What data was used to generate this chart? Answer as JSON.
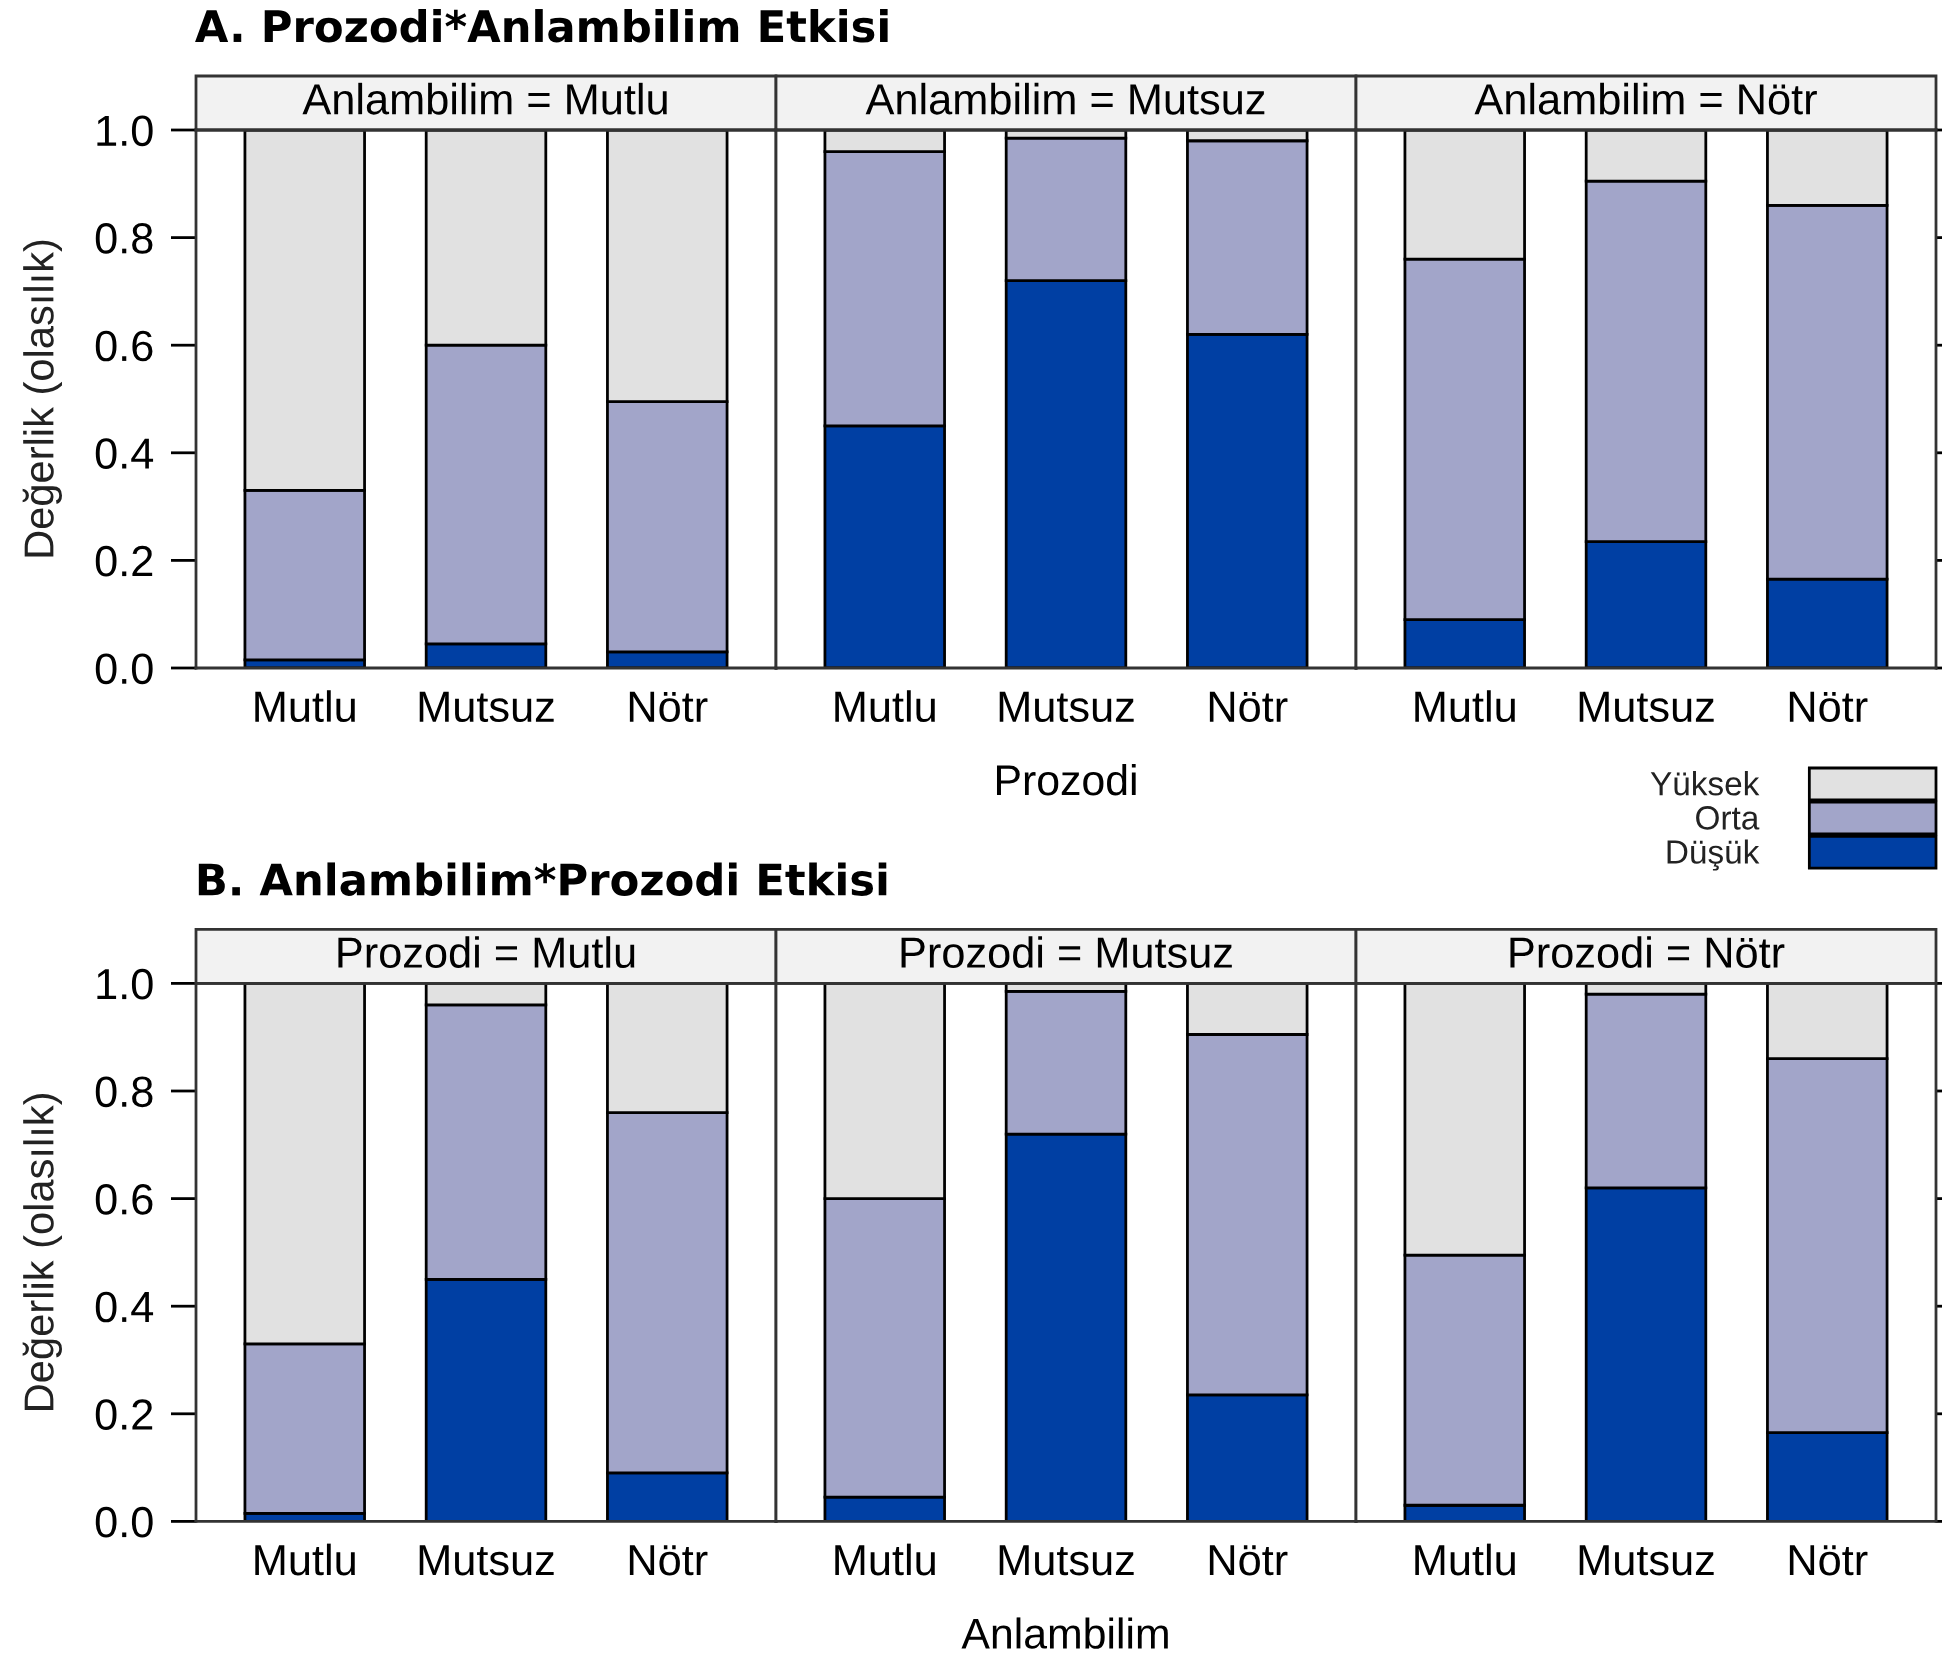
{
  "chart_data": [
    {
      "type": "bar",
      "stacked": true,
      "title": "Anlambilim = Mutlu",
      "annotations": [
        "A. Prozodi*Anlambilim Etkisi"
      ],
      "ylabel": "Değerlik (olasılık)",
      "categories": [
        "Mutlu",
        "Mutsuz",
        "Nötr"
      ],
      "series": [
        {
          "name": "Düşük",
          "color": "#003fa3",
          "values": [
            0.015,
            0.045,
            0.03
          ]
        },
        {
          "name": "Orta",
          "color": "#a2a5c9",
          "values": [
            0.315,
            0.555,
            0.465
          ]
        },
        {
          "name": "Yüksek",
          "color": "#e1e1e1",
          "values": [
            0.67,
            0.4,
            0.505
          ]
        }
      ],
      "ylim": [
        0,
        1
      ],
      "yticks": [
        {
          "value": 0,
          "label": "0.0"
        },
        {
          "value": 0.2,
          "label": "0.2"
        },
        {
          "value": 0.4,
          "label": "0.4"
        },
        {
          "value": 0.6,
          "label": "0.6"
        },
        {
          "value": 0.8,
          "label": "0.8"
        },
        {
          "value": 1,
          "label": "1.0"
        }
      ],
      "legend": "bottom right"
    },
    {
      "type": "bar",
      "stacked": true,
      "title": "Anlambilim = Mutsuz",
      "xlabel": "Prozodi",
      "categories": [
        "Mutlu",
        "Mutsuz",
        "Nötr"
      ],
      "series": [
        {
          "color": "#003fa3",
          "values": [
            0.45,
            0.72,
            0.62
          ]
        },
        {
          "color": "#a2a5c9",
          "values": [
            0.51,
            0.265,
            0.36
          ]
        },
        {
          "color": "#e1e1e1",
          "values": [
            0.04,
            0.015,
            0.02
          ]
        }
      ],
      "ylim": [
        0,
        1
      ],
      "tick_labels": "x"
    },
    {
      "type": "bar",
      "stacked": true,
      "title": "Anlambilim = Nötr",
      "categories": [
        "Mutlu",
        "Mutsuz",
        "Nötr"
      ],
      "series": [
        {
          "color": "#003fa3",
          "values": [
            0.09,
            0.235,
            0.165
          ]
        },
        {
          "color": "#a2a5c9",
          "values": [
            0.67,
            0.67,
            0.695
          ]
        },
        {
          "color": "#e1e1e1",
          "values": [
            0.24,
            0.095,
            0.14
          ]
        }
      ],
      "ylim": [
        0,
        1
      ],
      "yticks": [
        {
          "value": 0,
          "label": null
        },
        {
          "value": 0.2,
          "label": null
        },
        {
          "value": 0.4,
          "label": null
        },
        {
          "value": 0.6,
          "label": null
        },
        {
          "value": 0.8,
          "label": null
        },
        {
          "value": 1,
          "label": null
        }
      ],
      "tick_labels": "x"
    },
    {
      "type": "bar",
      "stacked": true,
      "title": "Prozodi = Mutlu",
      "annotations": [
        "B. Anlambilim*Prozodi Etkisi"
      ],
      "ylabel": "Değerlik (olasılık)",
      "categories": [
        "Mutlu",
        "Mutsuz",
        "Nötr"
      ],
      "series": [
        {
          "color": "#003fa3",
          "values": [
            0.015,
            0.45,
            0.09
          ]
        },
        {
          "color": "#a2a5c9",
          "values": [
            0.315,
            0.51,
            0.67
          ]
        },
        {
          "color": "#e1e1e1",
          "values": [
            0.67,
            0.04,
            0.24
          ]
        }
      ],
      "ylim": [
        0,
        1
      ],
      "yticks": [
        {
          "value": 0,
          "label": "0.0"
        },
        {
          "value": 0.2,
          "label": "0.2"
        },
        {
          "value": 0.4,
          "label": "0.4"
        },
        {
          "value": 0.6,
          "label": "0.6"
        },
        {
          "value": 0.8,
          "label": "0.8"
        },
        {
          "value": 1,
          "label": "1.0"
        }
      ]
    },
    {
      "type": "bar",
      "stacked": true,
      "title": "Prozodi = Mutsuz",
      "xlabel": "Anlambilim",
      "categories": [
        "Mutlu",
        "Mutsuz",
        "Nötr"
      ],
      "series": [
        {
          "color": "#003fa3",
          "values": [
            0.045,
            0.72,
            0.235
          ]
        },
        {
          "color": "#a2a5c9",
          "values": [
            0.555,
            0.265,
            0.67
          ]
        },
        {
          "color": "#e1e1e1",
          "values": [
            0.4,
            0.015,
            0.095
          ]
        }
      ],
      "ylim": [
        0,
        1
      ],
      "tick_labels": "x"
    },
    {
      "type": "bar",
      "stacked": true,
      "title": "Prozodi = Nötr",
      "categories": [
        "Mutlu",
        "Mutsuz",
        "Nötr"
      ],
      "series": [
        {
          "color": "#003fa3",
          "values": [
            0.03,
            0.62,
            0.165
          ]
        },
        {
          "color": "#a2a5c9",
          "values": [
            0.465,
            0.36,
            0.695
          ]
        },
        {
          "color": "#e1e1e1",
          "values": [
            0.505,
            0.02,
            0.14
          ]
        }
      ],
      "ylim": [
        0,
        1
      ],
      "yticks": [
        {
          "value": 0,
          "label": null
        },
        {
          "value": 0.2,
          "label": null
        },
        {
          "value": 0.4,
          "label": null
        },
        {
          "value": 0.6,
          "label": null
        },
        {
          "value": 0.8,
          "label": null
        },
        {
          "value": 1,
          "label": null
        }
      ],
      "tick_labels": "x"
    }
  ]
}
